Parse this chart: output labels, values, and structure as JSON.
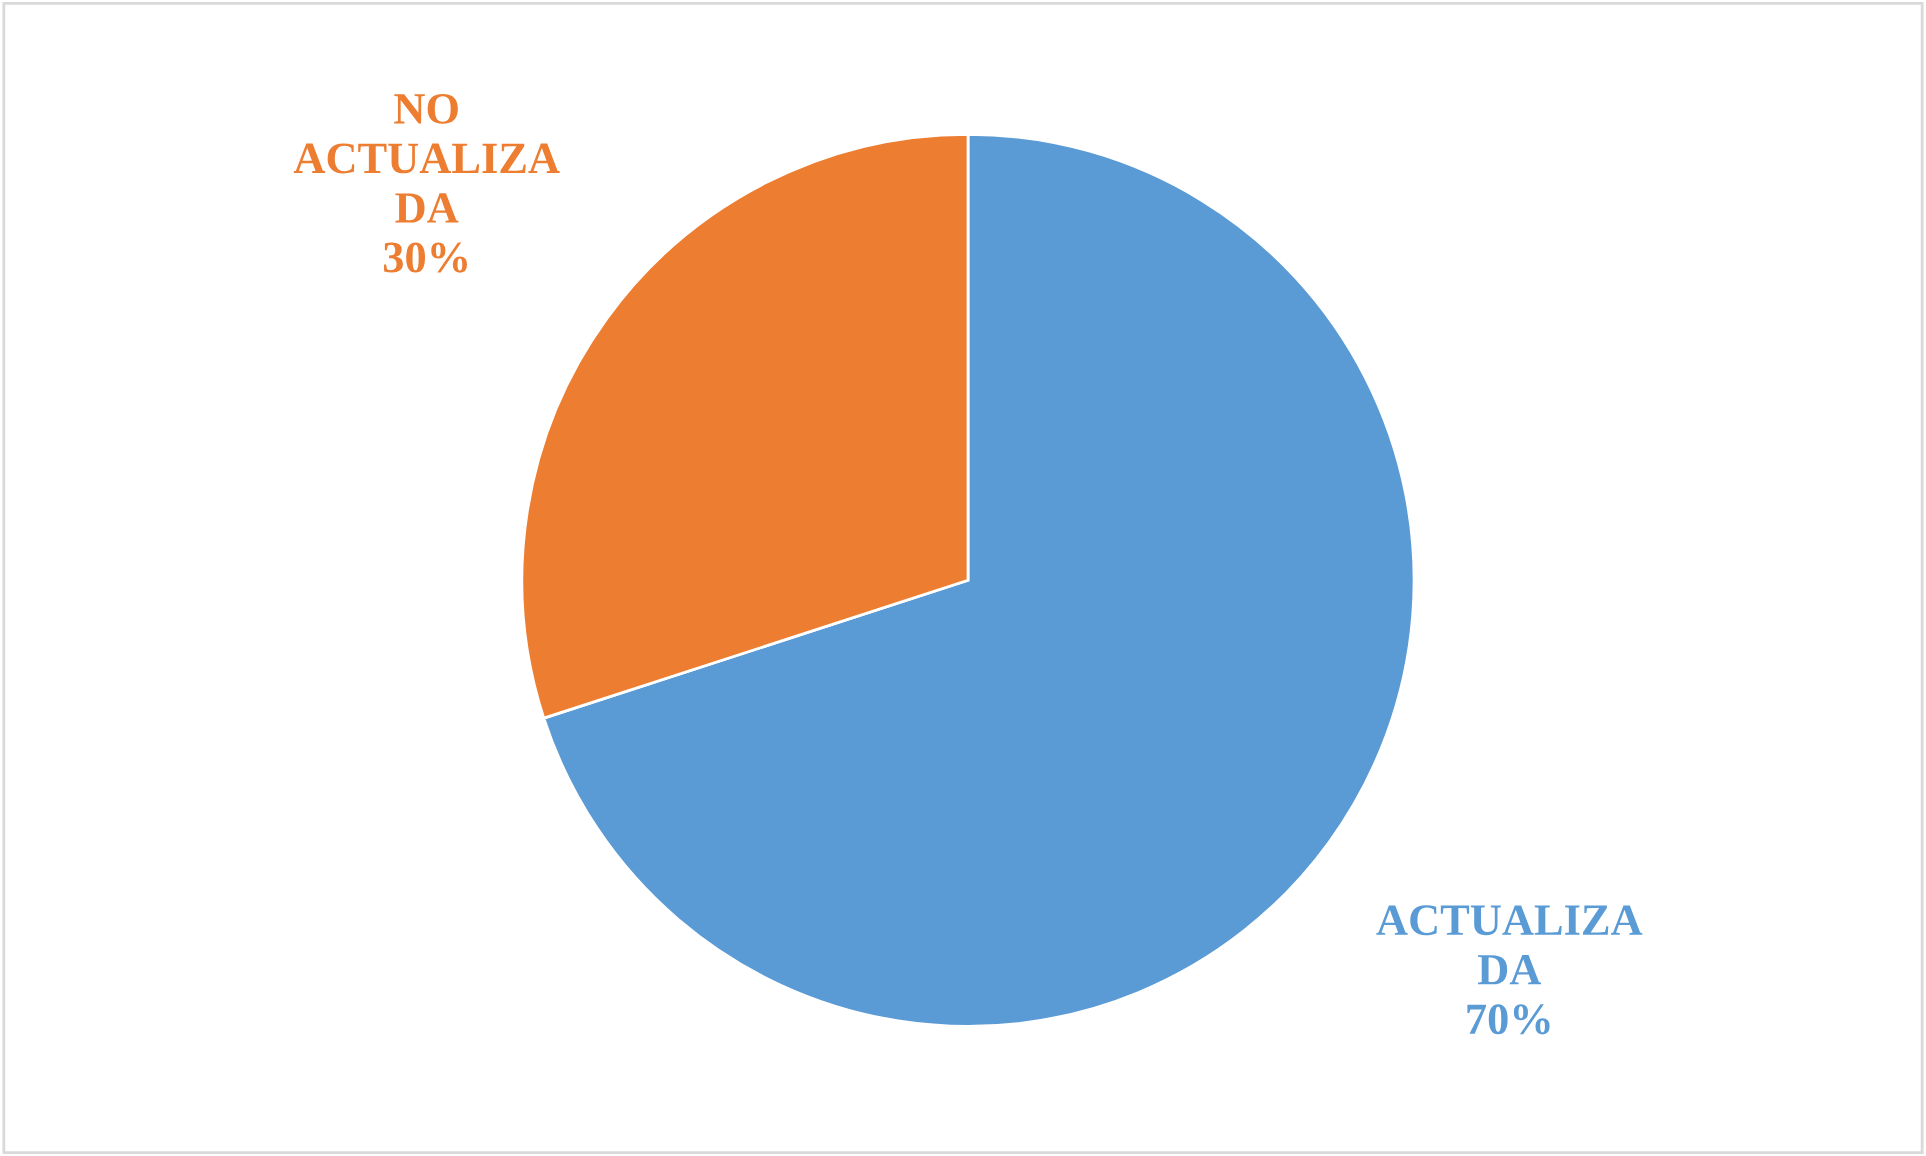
{
  "chart_data": {
    "type": "pie",
    "categories": [
      "ACTUALIZA\nDA",
      "NO\nACTUALIZA\nDA"
    ],
    "values": [
      70,
      30
    ],
    "colors": [
      "#5b9bd5",
      "#ed7d31"
    ],
    "value_labels": [
      "70%",
      "30%"
    ]
  }
}
